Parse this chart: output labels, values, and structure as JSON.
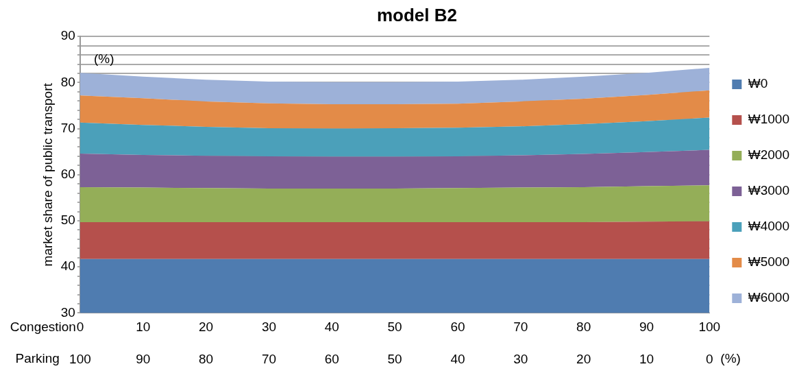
{
  "chart_data": {
    "type": "area",
    "title": "model B2",
    "ylabel": "market share of public transport",
    "xlabel": "Congestion",
    "x2label": "Parking",
    "x": [
      0,
      10,
      20,
      30,
      40,
      50,
      60,
      70,
      80,
      90,
      100
    ],
    "xlim": [
      0,
      100
    ],
    "xticks": [
      0,
      10,
      20,
      30,
      40,
      50,
      60,
      70,
      80,
      90,
      100
    ],
    "x2lim": [
      100,
      0
    ],
    "x2ticks": [
      100,
      90,
      80,
      70,
      60,
      50,
      40,
      30,
      20,
      10,
      0
    ],
    "ylim": [
      30,
      90
    ],
    "yticks": [
      30,
      {
        "value": 32,
        "label": null
      },
      {
        "value": 34,
        "label": null
      },
      {
        "value": 36,
        "label": null
      },
      {
        "value": 38,
        "label": null
      },
      40,
      {
        "value": 42,
        "label": null
      },
      {
        "value": 44,
        "label": null
      },
      {
        "value": 46,
        "label": null
      },
      {
        "value": 48,
        "label": null
      },
      50,
      {
        "value": 52,
        "label": null
      },
      {
        "value": 54,
        "label": null
      },
      {
        "value": 56,
        "label": null
      },
      {
        "value": 58,
        "label": null
      },
      60,
      {
        "value": 62,
        "label": null
      },
      {
        "value": 64,
        "label": null
      },
      {
        "value": 66,
        "label": null
      },
      {
        "value": 68,
        "label": null
      },
      70,
      {
        "value": 72,
        "label": null
      },
      {
        "value": 74,
        "label": null
      },
      {
        "value": 76,
        "label": null
      },
      {
        "value": 78,
        "label": null
      },
      80,
      {
        "value": 82,
        "label": null
      },
      {
        "value": 84,
        "label": null
      },
      {
        "value": 86,
        "label": null
      },
      {
        "value": 88,
        "label": null
      },
      90
    ],
    "grid": "y",
    "legend": "right",
    "annotations": [
      "(%)",
      "(%)"
    ],
    "series": [
      {
        "name": "₩0",
        "color": "#4f7cb0",
        "values": [
          41.7,
          41.7,
          41.7,
          41.7,
          41.7,
          41.7,
          41.7,
          41.7,
          41.7,
          41.7,
          41.7
        ]
      },
      {
        "name": "₩1000",
        "color": "#b5504c",
        "values": [
          49.7,
          49.7,
          49.7,
          49.7,
          49.7,
          49.7,
          49.7,
          49.7,
          49.7,
          49.8,
          49.9
        ]
      },
      {
        "name": "₩2000",
        "color": "#94ae58",
        "values": [
          57.3,
          57.2,
          57.1,
          57.0,
          57.0,
          57.0,
          57.1,
          57.2,
          57.3,
          57.5,
          57.7
        ]
      },
      {
        "name": "₩3000",
        "color": "#7d6196",
        "values": [
          64.6,
          64.3,
          64.1,
          64.0,
          63.9,
          63.9,
          64.0,
          64.2,
          64.5,
          64.9,
          65.4
        ]
      },
      {
        "name": "₩4000",
        "color": "#4ba0ba",
        "values": [
          71.3,
          70.8,
          70.4,
          70.1,
          70.0,
          70.1,
          70.2,
          70.5,
          71.0,
          71.6,
          72.4
        ]
      },
      {
        "name": "₩5000",
        "color": "#e38b48",
        "values": [
          77.2,
          76.6,
          75.9,
          75.5,
          75.3,
          75.3,
          75.4,
          75.9,
          76.5,
          77.3,
          78.3
        ]
      },
      {
        "name": "₩6000",
        "color": "#9db1d8",
        "values": [
          82.1,
          81.3,
          80.6,
          80.2,
          80.1,
          80.1,
          80.2,
          80.6,
          81.3,
          82.1,
          83.2
        ]
      }
    ]
  }
}
